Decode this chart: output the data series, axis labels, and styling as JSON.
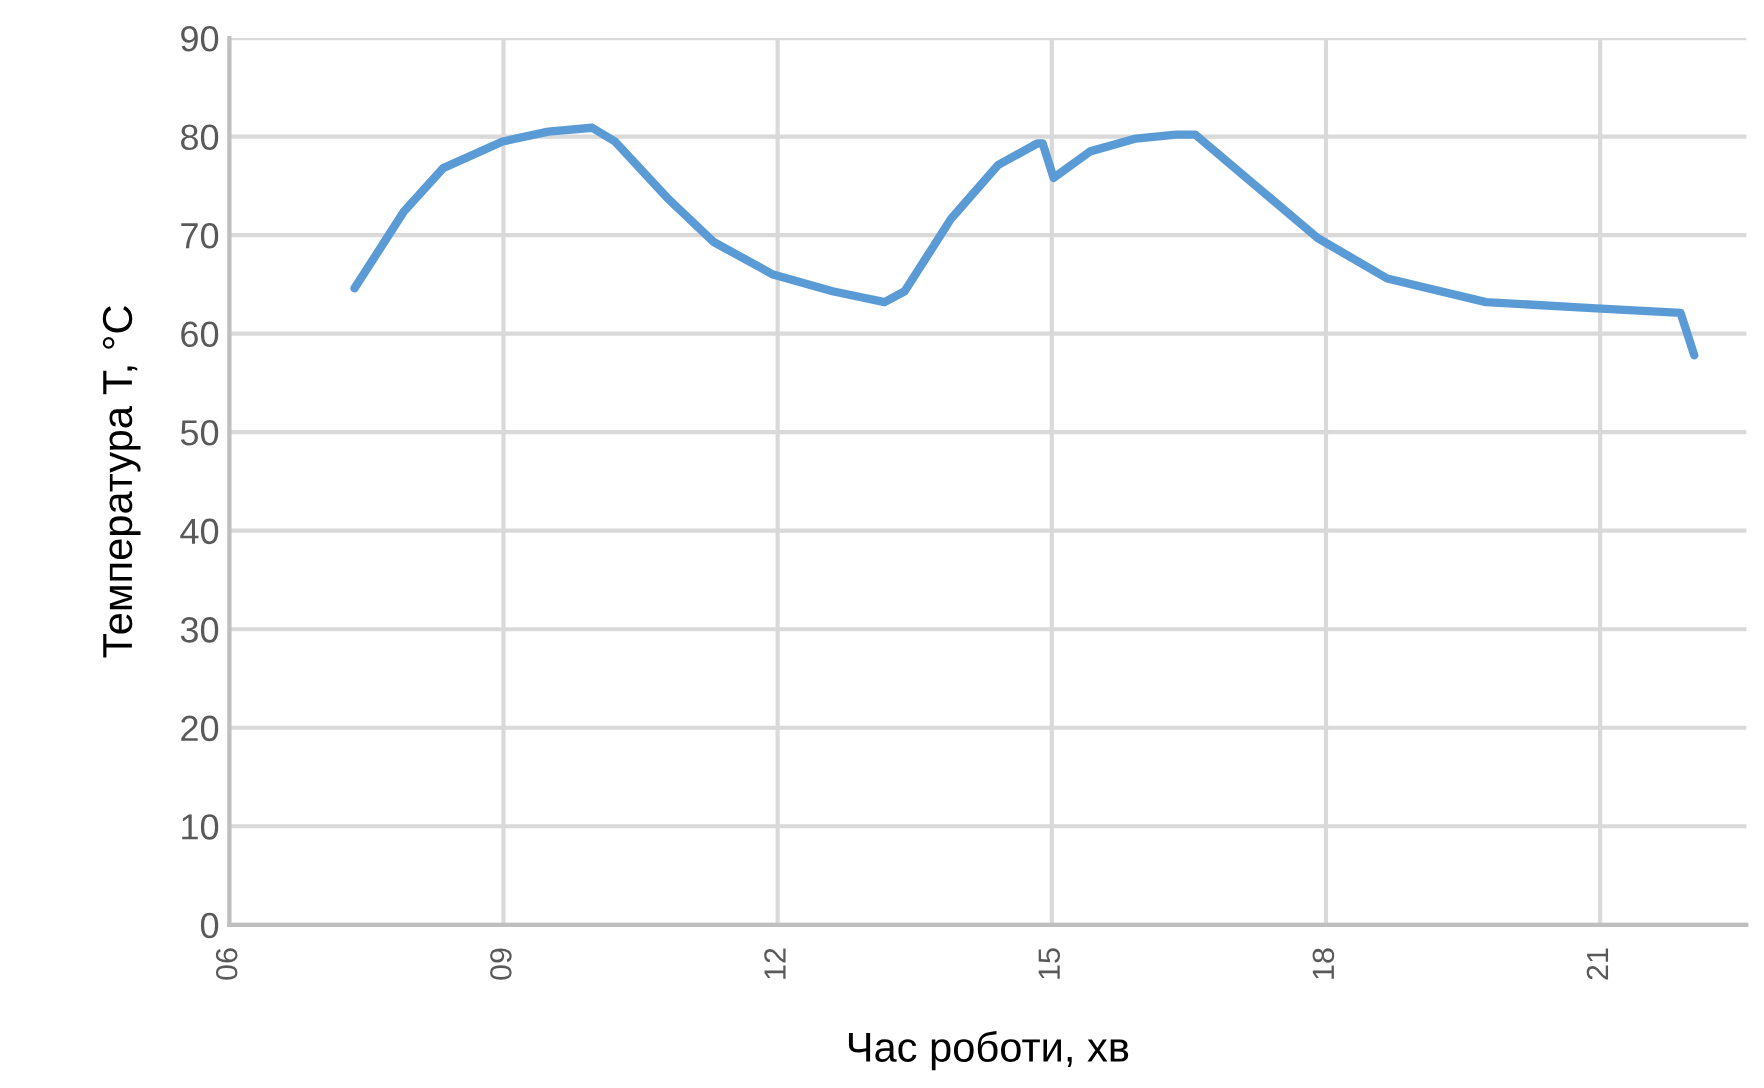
{
  "chart_data": {
    "type": "line",
    "xlabel": "Час роботи, хв",
    "ylabel": "Температура T, °C",
    "xlim": [
      6,
      22.6
    ],
    "ylim": [
      0,
      90
    ],
    "xticks": [
      {
        "value": 6,
        "label": "06"
      },
      {
        "value": 9,
        "label": "09"
      },
      12,
      15,
      18,
      21
    ],
    "yticks": [
      0,
      10,
      20,
      30,
      40,
      50,
      60,
      70,
      80,
      90
    ],
    "grid": true,
    "marker": "none",
    "line_style": "solid",
    "series": [
      {
        "color": "#5b9bd5",
        "x": [
          7.37,
          7.91,
          8.34,
          8.99,
          9.49,
          9.97,
          10.22,
          10.79,
          11.3,
          11.95,
          12.6,
          13.17,
          13.39,
          13.9,
          14.41,
          14.84,
          14.9,
          15.02,
          15.42,
          15.92,
          16.36,
          16.57,
          17.22,
          17.91,
          18.67,
          19.75,
          20.91,
          21.88,
          22.03
        ],
        "values": [
          64.6,
          72.4,
          76.8,
          79.5,
          80.5,
          80.9,
          79.5,
          73.8,
          69.3,
          66.0,
          64.3,
          63.2,
          64.3,
          71.7,
          77.1,
          79.3,
          79.3,
          75.8,
          78.5,
          79.8,
          80.2,
          80.2,
          75.1,
          69.7,
          65.6,
          63.2,
          62.6,
          62.1,
          57.8
        ]
      }
    ]
  }
}
